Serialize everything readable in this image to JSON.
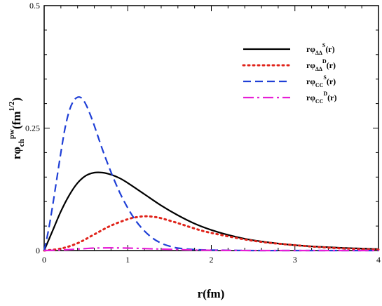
{
  "chart_data": {
    "type": "line",
    "xlim": [
      0,
      4
    ],
    "ylim": [
      0,
      0.5
    ],
    "x_ticks": [
      "0",
      "1",
      "2",
      "3",
      "4"
    ],
    "y_ticks": [
      "0",
      "0.25",
      "0.5"
    ],
    "xlabel": {
      "main": "r(fm)"
    },
    "ylabel": {
      "base": "rφ",
      "sub": "ch",
      "sup": "pw",
      "unit_open": "(fm",
      "unit_sup": "1/2",
      "unit_close": ")"
    },
    "legend_position": "top-right",
    "grid": false,
    "series": [
      {
        "name": "rφΔΔS(r)",
        "label": {
          "base": "rφ",
          "sub": "ΔΔ",
          "sup": "S",
          "tail": "(r)"
        },
        "color": "#000000",
        "dash": "solid",
        "x": [
          0,
          0.1,
          0.2,
          0.3,
          0.4,
          0.5,
          0.6,
          0.7,
          0.8,
          0.9,
          1.0,
          1.2,
          1.4,
          1.6,
          1.8,
          2.0,
          2.2,
          2.5,
          3.0,
          3.5,
          4.0
        ],
        "y": [
          0,
          0.04,
          0.08,
          0.113,
          0.138,
          0.153,
          0.159,
          0.159,
          0.155,
          0.148,
          0.138,
          0.115,
          0.092,
          0.072,
          0.055,
          0.042,
          0.032,
          0.021,
          0.011,
          0.006,
          0.003
        ]
      },
      {
        "name": "rφΔΔD(r)",
        "label": {
          "base": "rφ",
          "sub": "ΔΔ",
          "sup": "D",
          "tail": "(r)"
        },
        "color": "#e0241b",
        "dash": "dotted",
        "x": [
          0,
          0.2,
          0.4,
          0.6,
          0.8,
          1.0,
          1.1,
          1.2,
          1.3,
          1.4,
          1.6,
          1.8,
          2.0,
          2.5,
          3.0,
          3.5,
          4.0
        ],
        "y": [
          0,
          0.004,
          0.015,
          0.033,
          0.051,
          0.064,
          0.068,
          0.07,
          0.069,
          0.066,
          0.056,
          0.045,
          0.036,
          0.02,
          0.011,
          0.005,
          0.002
        ]
      },
      {
        "name": "rφCCS(r)",
        "label": {
          "base": "rφ",
          "sub": "CC",
          "sup": "S",
          "tail": "(r)"
        },
        "color": "#1f3fd6",
        "dash": "dashed",
        "x": [
          0,
          0.05,
          0.1,
          0.15,
          0.2,
          0.25,
          0.3,
          0.35,
          0.4,
          0.45,
          0.5,
          0.55,
          0.6,
          0.7,
          0.8,
          0.9,
          1.0,
          1.1,
          1.2,
          1.3,
          1.4,
          1.5,
          1.6,
          1.8,
          2.0,
          2.5,
          3.0,
          4.0
        ],
        "y": [
          0,
          0.04,
          0.09,
          0.145,
          0.2,
          0.25,
          0.285,
          0.305,
          0.313,
          0.311,
          0.298,
          0.278,
          0.255,
          0.205,
          0.16,
          0.12,
          0.087,
          0.06,
          0.04,
          0.025,
          0.015,
          0.009,
          0.005,
          0.002,
          0.001,
          0,
          0,
          0
        ]
      },
      {
        "name": "rφCCD(r)",
        "label": {
          "base": "rφ",
          "sub": "CC",
          "sup": "D",
          "tail": "(r)"
        },
        "color": "#e61ed6",
        "dash": "dashdot",
        "x": [
          0,
          0.2,
          0.4,
          0.6,
          0.8,
          1.0,
          1.2,
          1.4,
          1.6,
          1.8,
          2.0,
          2.5,
          3.0,
          4.0
        ],
        "y": [
          0,
          0.001,
          0.003,
          0.005,
          0.0055,
          0.005,
          0.004,
          0.003,
          0.002,
          0.001,
          0.0005,
          0,
          0,
          0
        ]
      }
    ]
  }
}
